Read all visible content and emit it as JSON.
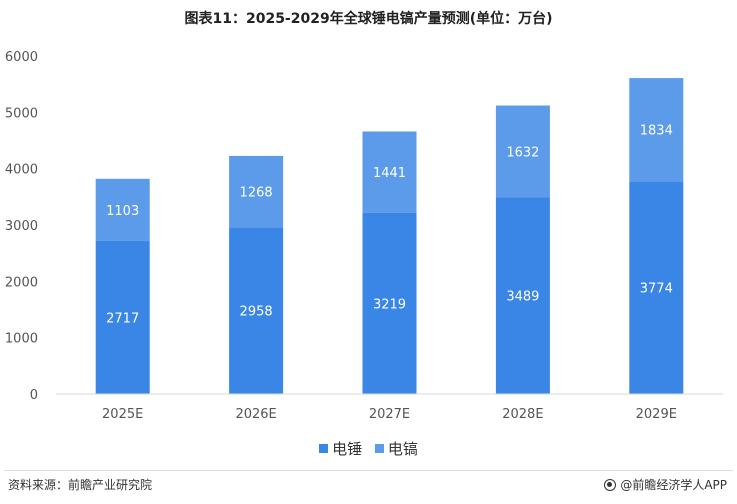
{
  "title": "图表11：2025-2029年全球锤电镐产量预测(单位：万台)",
  "chart_data": {
    "type": "bar",
    "stacked": true,
    "categories": [
      "2025E",
      "2026E",
      "2027E",
      "2028E",
      "2029E"
    ],
    "series": [
      {
        "name": "电锤",
        "values": [
          2717,
          2958,
          3219,
          3489,
          3774
        ],
        "color": "#3a86e6"
      },
      {
        "name": "电镐",
        "values": [
          1103,
          1268,
          1441,
          1632,
          1834
        ],
        "color": "#5b9be9"
      }
    ],
    "yticks": [
      0,
      1000,
      2000,
      3000,
      4000,
      5000,
      6000
    ],
    "ylim": [
      0,
      6000
    ],
    "grid": false,
    "legend_position": "bottom"
  },
  "legend": {
    "items": [
      {
        "label": "电锤",
        "color": "#3a86e6"
      },
      {
        "label": "电镐",
        "color": "#5b9be9"
      }
    ]
  },
  "footer": {
    "source": "资料来源：前瞻产业研究院",
    "brand": "@前瞻经济学人APP",
    "logo_icon": "qianzhan-logo-icon"
  }
}
